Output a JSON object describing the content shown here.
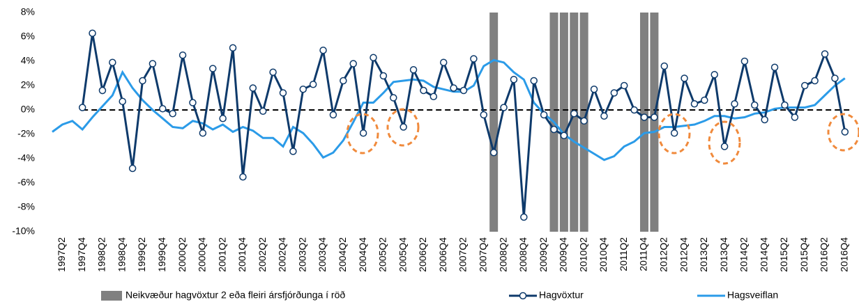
{
  "chart_data": {
    "type": "line",
    "categories": [
      null,
      "1997Q2",
      null,
      "1997Q4",
      null,
      "1998Q2",
      null,
      "1998Q4",
      null,
      "1999Q2",
      null,
      "1999Q4",
      null,
      "2000Q2",
      null,
      "2000Q4",
      null,
      "2001Q2",
      null,
      "2001Q4",
      null,
      "2002Q2",
      null,
      "2002Q4",
      null,
      "2003Q2",
      null,
      "2003Q4",
      null,
      "2004Q2",
      null,
      "2004Q4",
      null,
      "2005Q2",
      null,
      "2005Q4",
      null,
      "2006Q2",
      null,
      "2006Q4",
      null,
      "2007Q2",
      null,
      "2007Q4",
      null,
      "2008Q2",
      null,
      "2008Q4",
      null,
      "2009Q2",
      null,
      "2009Q4",
      null,
      "2010Q2",
      null,
      "2010Q4",
      null,
      "2011Q2",
      null,
      "2011Q4",
      null,
      "2012Q2",
      null,
      "2012Q4",
      null,
      "2013Q2",
      null,
      "2013Q4",
      null,
      "2014Q2",
      null,
      "2014Q4",
      null,
      "2015Q2",
      null,
      "2015Q4",
      null,
      "2016Q2",
      null,
      "2016Q4"
    ],
    "series": [
      {
        "name": "Neikvæður hagvöxtur 2 eða fleiri ársfjórðunga í röð",
        "kind": "bar",
        "color": "#808080",
        "values": [
          null,
          null,
          null,
          null,
          null,
          null,
          null,
          null,
          null,
          null,
          null,
          null,
          null,
          null,
          null,
          null,
          null,
          null,
          null,
          null,
          null,
          null,
          null,
          null,
          null,
          null,
          null,
          null,
          null,
          null,
          null,
          null,
          null,
          null,
          null,
          null,
          null,
          null,
          null,
          null,
          null,
          null,
          null,
          null,
          8,
          null,
          null,
          null,
          null,
          null,
          8,
          8,
          8,
          8,
          null,
          null,
          null,
          null,
          null,
          8,
          8,
          null,
          null,
          null,
          null,
          null,
          null,
          null,
          null,
          null,
          null,
          null,
          null,
          null,
          null,
          null,
          null,
          null,
          null,
          null
        ]
      },
      {
        "name": "Hagvöxtur",
        "kind": "line-marker",
        "color": "#0e3a6b",
        "values": [
          null,
          null,
          null,
          0.2,
          6.3,
          1.6,
          3.9,
          0.7,
          -4.8,
          2.4,
          3.8,
          0.1,
          -0.3,
          4.5,
          0.6,
          -1.9,
          3.4,
          -0.7,
          5.1,
          -5.5,
          1.8,
          -0.1,
          3.1,
          1.4,
          -3.4,
          1.7,
          2.1,
          4.9,
          -0.4,
          2.4,
          3.8,
          -1.9,
          4.3,
          2.8,
          1.0,
          -1.4,
          3.3,
          1.6,
          1.1,
          3.9,
          1.8,
          1.6,
          4.2,
          -0.4,
          -3.5,
          0.2,
          2.5,
          -8.8,
          2.4,
          -0.4,
          -1.6,
          -2.1,
          -0.3,
          -0.9,
          1.7,
          -0.5,
          1.4,
          2.0,
          0.0,
          -0.6,
          -0.6,
          3.6,
          -1.9,
          2.6,
          0.5,
          0.8,
          2.9,
          -3.0,
          0.5,
          4.0,
          0.4,
          -0.8,
          3.5,
          0.4,
          -0.6,
          2.0,
          2.4,
          4.6,
          2.6,
          -1.8
        ]
      },
      {
        "name": "Hagsveiflan",
        "kind": "line",
        "color": "#2b9be8",
        "values": [
          -1.8,
          -1.2,
          -0.9,
          -1.6,
          -0.6,
          0.3,
          1.2,
          3.1,
          1.8,
          0.8,
          0,
          -0.7,
          -1.4,
          -1.5,
          -0.9,
          -1.1,
          -1.6,
          -1.2,
          -1.8,
          -1.4,
          -1.7,
          -2.3,
          -2.3,
          -3.0,
          -1.4,
          -1.9,
          -2.8,
          -3.9,
          -3.5,
          -2.5,
          -1.0,
          0.6,
          0.6,
          1.4,
          2.3,
          2.4,
          2.5,
          2.4,
          1.9,
          1.7,
          1.5,
          1.5,
          2.0,
          3.6,
          4.1,
          3.9,
          3.1,
          2.5,
          0.6,
          -0.3,
          -1.0,
          -2.0,
          -2.6,
          -3.1,
          -3.6,
          -4.1,
          -3.8,
          -3.0,
          -2.6,
          -1.9,
          -1.8,
          -1.4,
          -1.4,
          -1.3,
          -1.2,
          -0.9,
          -0.5,
          -0.5,
          -0.7,
          -0.6,
          -0.3,
          -0.2,
          0.1,
          0.2,
          0.2,
          0.2,
          0.4,
          1.2,
          2.0,
          2.6
        ]
      }
    ],
    "ylim": [
      -10,
      8
    ],
    "yticks": [
      {
        "value": -10,
        "label": "-10%"
      },
      {
        "value": -8,
        "label": "-8%"
      },
      {
        "value": -6,
        "label": "-6%"
      },
      {
        "value": -4,
        "label": "-4%"
      },
      {
        "value": -2,
        "label": "-2%"
      },
      {
        "value": 0,
        "label": "0%"
      },
      {
        "value": 2,
        "label": "2%"
      },
      {
        "value": 4,
        "label": "4%"
      },
      {
        "value": 6,
        "label": "6%"
      },
      {
        "value": 8,
        "label": "8%"
      }
    ],
    "hline": 0,
    "grid": false,
    "legend": "bottom"
  }
}
